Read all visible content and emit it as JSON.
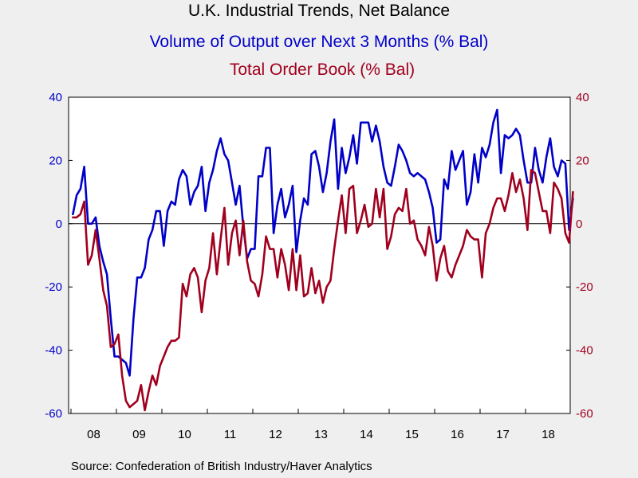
{
  "titles": {
    "main": "U.K. Industrial Trends, Net Balance",
    "series1": "Volume of Output over Next 3 Months (% Bal)",
    "series2": "Total Order Book (% Bal)"
  },
  "source": "Source:  Confederation of British Industry/Haver Analytics",
  "colors": {
    "series1": "#0000c8",
    "series2": "#a0001e",
    "plot_bg": "#ffffff",
    "page_bg": "#efefef"
  },
  "chart_data": {
    "type": "line",
    "title": "U.K. Industrial Trends, Net Balance",
    "x_start": "2008-01",
    "x_end": "2018-12",
    "x_tick_labels": [
      "08",
      "09",
      "10",
      "11",
      "12",
      "13",
      "14",
      "15",
      "16",
      "17",
      "18"
    ],
    "ylim": [
      -60,
      40
    ],
    "y_ticks_left": [
      "40",
      "20",
      "0",
      "-20",
      "-40",
      "-60"
    ],
    "y_ticks_right": [
      "40",
      "20",
      "0",
      "-20",
      "-40",
      "-60"
    ],
    "zero_line": true,
    "grid": false,
    "series": [
      {
        "name": "Volume of Output over Next 3 Months (% Bal)",
        "axis": "left",
        "color": "#0000c8",
        "values": [
          3,
          9,
          11,
          18,
          0,
          0,
          2,
          -7,
          -12,
          -16,
          -30,
          -42,
          -42,
          -43,
          -44,
          -48,
          -30,
          -17,
          -17,
          -14,
          -5,
          -2,
          4,
          4,
          -7,
          4,
          7,
          6,
          14,
          17,
          15,
          6,
          10,
          12,
          18,
          4,
          13,
          17,
          23,
          27,
          22,
          20,
          13,
          6,
          12,
          -1,
          -11,
          -8,
          -8,
          15,
          15,
          24,
          24,
          -3,
          6,
          11,
          2,
          6,
          12,
          -9,
          1,
          8,
          6,
          22,
          23,
          18,
          10,
          16,
          26,
          33,
          11,
          24,
          16,
          21,
          28,
          19,
          32,
          32,
          32,
          26,
          31,
          26,
          18,
          13,
          12,
          18,
          25,
          23,
          20,
          16,
          15,
          16,
          15,
          14,
          10,
          5,
          -6,
          -5,
          14,
          11,
          23,
          17,
          20,
          23,
          6,
          10,
          22,
          13,
          24,
          21,
          25,
          32,
          36,
          16,
          28,
          27,
          28,
          30,
          28,
          20,
          13,
          13,
          24,
          17,
          13,
          21,
          27,
          18,
          15,
          20,
          19,
          -2,
          8
        ]
      },
      {
        "name": "Total Order Book (% Bal)",
        "axis": "right",
        "color": "#a0001e",
        "values": [
          2,
          2,
          3,
          7,
          -13,
          -10,
          -2,
          -11,
          -21,
          -26,
          -39,
          -38,
          -35,
          -48,
          -56,
          -58,
          -57,
          -56,
          -51,
          -59,
          -53,
          -48,
          -51,
          -45,
          -42,
          -39,
          -37,
          -37,
          -36,
          -19,
          -23,
          -16,
          -14,
          -17,
          -28,
          -18,
          -14,
          -3,
          -16,
          -5,
          5,
          -13,
          -3,
          1,
          -10,
          1,
          -12,
          -18,
          -19,
          -23,
          -16,
          -4,
          -8,
          -8,
          -17,
          -8,
          -13,
          -21,
          -8,
          -21,
          -10,
          -23,
          -22,
          -14,
          -22,
          -18,
          -25,
          -20,
          -18,
          -8,
          1,
          9,
          -3,
          11,
          12,
          -3,
          1,
          6,
          -1,
          0,
          11,
          2,
          11,
          -8,
          -4,
          3,
          5,
          4,
          11,
          0,
          1,
          -5,
          -7,
          -10,
          -1,
          -7,
          -18,
          -11,
          -7,
          -15,
          -17,
          -13,
          -10,
          -7,
          -2,
          -4,
          -5,
          -5,
          -17,
          -3,
          0,
          5,
          8,
          8,
          4,
          9,
          16,
          10,
          14,
          8,
          -2,
          17,
          16,
          10,
          4,
          4,
          -3,
          13,
          11,
          8,
          -3,
          -6,
          10
        ]
      }
    ]
  }
}
